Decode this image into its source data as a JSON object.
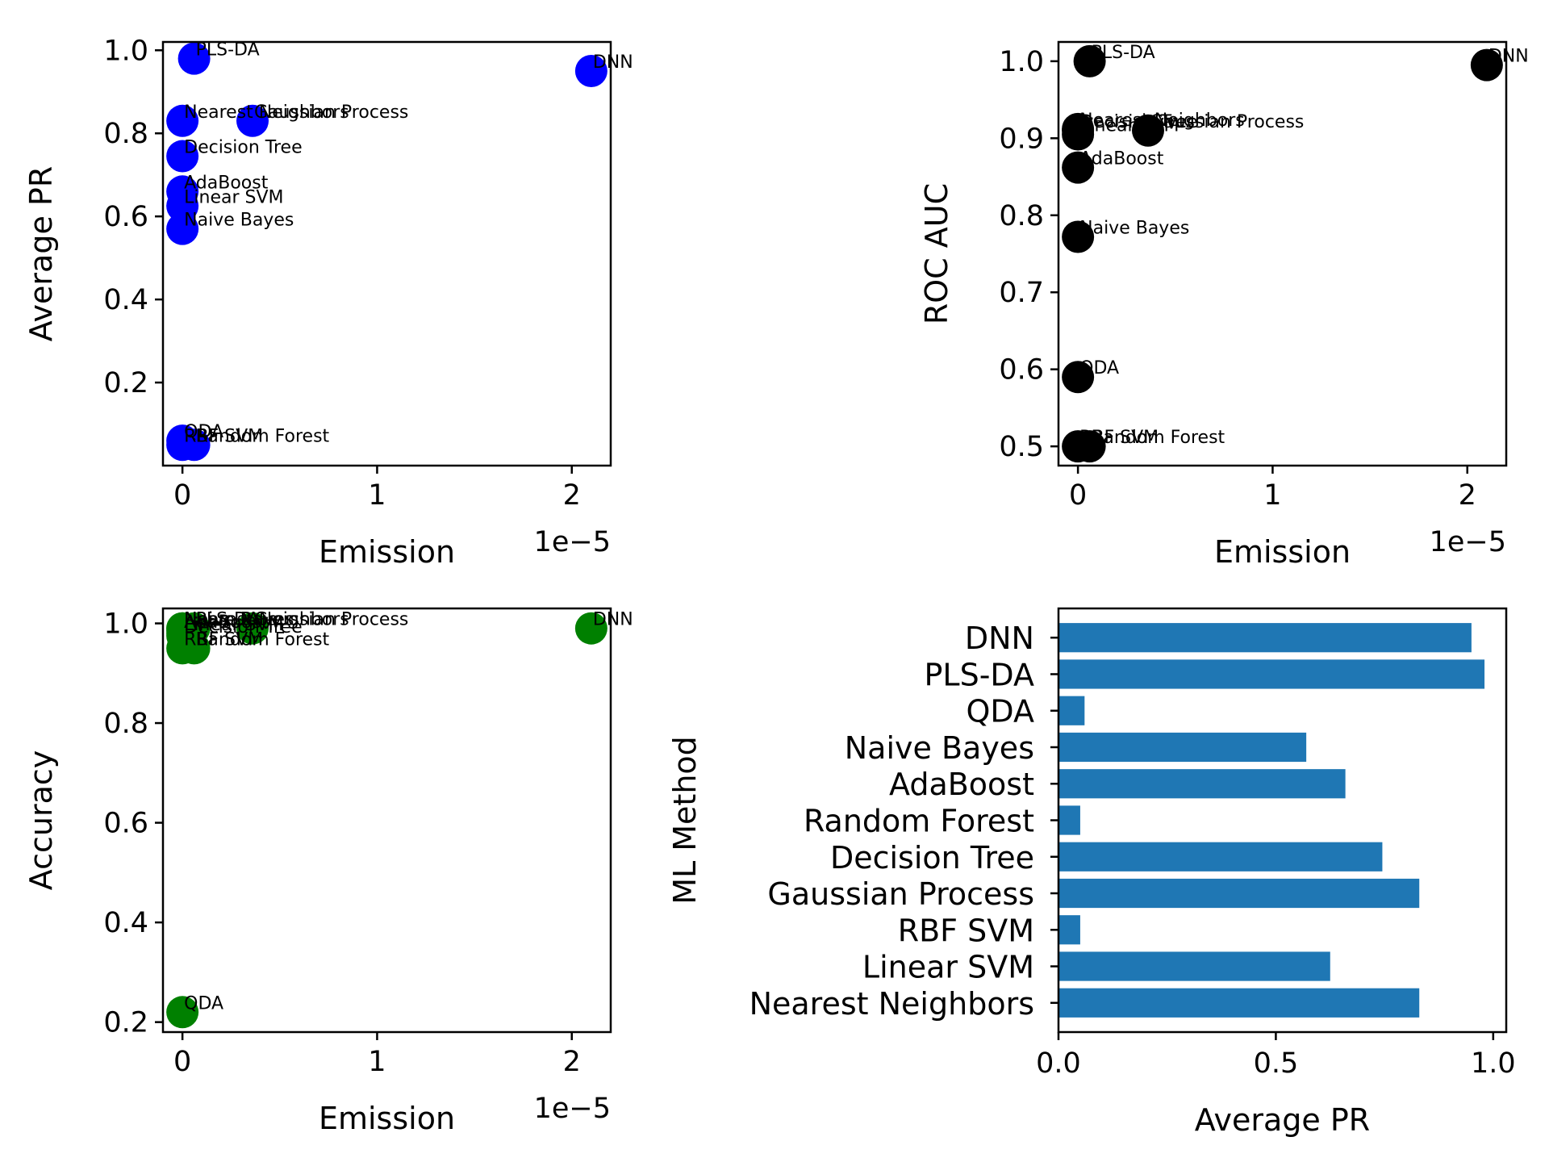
{
  "chart_data": [
    {
      "type": "scatter",
      "xlabel": "Emission",
      "ylabel": "Average PR",
      "x_offset_label": "1e−5",
      "color": "#0000ff",
      "xlim": [
        -1e-06,
        2.2e-05
      ],
      "ylim": [
        0.0,
        1.02
      ],
      "xticks": [
        0,
        1e-05,
        2e-05
      ],
      "xtick_labels": [
        "0",
        "1",
        "2"
      ],
      "yticks": [
        0.2,
        0.4,
        0.6,
        0.8,
        1.0
      ],
      "ytick_labels": [
        "0.2",
        "0.4",
        "0.6",
        "0.8",
        "1.0"
      ],
      "points": [
        {
          "label": "Nearest Neighbors",
          "x": 0.0,
          "y": 0.83
        },
        {
          "label": "Linear SVM",
          "x": 0.0,
          "y": 0.625
        },
        {
          "label": "RBF SVM",
          "x": 0.0,
          "y": 0.05
        },
        {
          "label": "Gaussian Process",
          "x": 3.6e-06,
          "y": 0.83
        },
        {
          "label": "Decision Tree",
          "x": 0.0,
          "y": 0.745
        },
        {
          "label": "Random Forest",
          "x": 6e-07,
          "y": 0.05
        },
        {
          "label": "AdaBoost",
          "x": 0.0,
          "y": 0.66
        },
        {
          "label": "Naive Bayes",
          "x": 0.0,
          "y": 0.57
        },
        {
          "label": "QDA",
          "x": 0.0,
          "y": 0.06
        },
        {
          "label": "PLS-DA",
          "x": 6e-07,
          "y": 0.98
        },
        {
          "label": "DNN",
          "x": 2.1e-05,
          "y": 0.95
        }
      ]
    },
    {
      "type": "scatter",
      "xlabel": "Emission",
      "ylabel": "ROC AUC",
      "x_offset_label": "1e−5",
      "color": "#000000",
      "xlim": [
        -1e-06,
        2.2e-05
      ],
      "ylim": [
        0.475,
        1.025
      ],
      "xticks": [
        0,
        1e-05,
        2e-05
      ],
      "xtick_labels": [
        "0",
        "1",
        "2"
      ],
      "yticks": [
        0.5,
        0.6,
        0.7,
        0.8,
        0.9,
        1.0
      ],
      "ytick_labels": [
        "0.5",
        "0.6",
        "0.7",
        "0.8",
        "0.9",
        "1.0"
      ],
      "points": [
        {
          "label": "Nearest Neighbors",
          "x": 0.0,
          "y": 0.912
        },
        {
          "label": "Linear SVM",
          "x": 0.0,
          "y": 0.905
        },
        {
          "label": "RBF SVM",
          "x": 0.0,
          "y": 0.5
        },
        {
          "label": "Gaussian Process",
          "x": 3.6e-06,
          "y": 0.91
        },
        {
          "label": "Decision Tree",
          "x": 0.0,
          "y": 0.91
        },
        {
          "label": "Random Forest",
          "x": 6e-07,
          "y": 0.5
        },
        {
          "label": "AdaBoost",
          "x": 0.0,
          "y": 0.862
        },
        {
          "label": "Naive Bayes",
          "x": 0.0,
          "y": 0.772
        },
        {
          "label": "QDA",
          "x": 0.0,
          "y": 0.59
        },
        {
          "label": "PLS-DA",
          "x": 6e-07,
          "y": 1.0
        },
        {
          "label": "DNN",
          "x": 2.1e-05,
          "y": 0.995
        }
      ]
    },
    {
      "type": "scatter",
      "xlabel": "Emission",
      "ylabel": "Accuracy",
      "x_offset_label": "1e−5",
      "color": "#008000",
      "xlim": [
        -1e-06,
        2.2e-05
      ],
      "ylim": [
        0.18,
        1.03
      ],
      "xticks": [
        0,
        1e-05,
        2e-05
      ],
      "xtick_labels": [
        "0",
        "1",
        "2"
      ],
      "yticks": [
        0.2,
        0.4,
        0.6,
        0.8,
        1.0
      ],
      "ytick_labels": [
        "0.2",
        "0.4",
        "0.6",
        "0.8",
        "1.0"
      ],
      "points": [
        {
          "label": "Nearest Neighbors",
          "x": 0.0,
          "y": 0.99
        },
        {
          "label": "Linear SVM",
          "x": 0.0,
          "y": 0.98
        },
        {
          "label": "RBF SVM",
          "x": 0.0,
          "y": 0.95
        },
        {
          "label": "Gaussian Process",
          "x": 3.6e-06,
          "y": 0.99
        },
        {
          "label": "Decision Tree",
          "x": 0.0,
          "y": 0.975
        },
        {
          "label": "Random Forest",
          "x": 6e-07,
          "y": 0.95
        },
        {
          "label": "AdaBoost",
          "x": 0.0,
          "y": 0.985
        },
        {
          "label": "Naive Bayes",
          "x": 0.0,
          "y": 0.99
        },
        {
          "label": "QDA",
          "x": 0.0,
          "y": 0.22
        },
        {
          "label": "PLS-DA",
          "x": 6e-07,
          "y": 0.99
        },
        {
          "label": "DNN",
          "x": 2.1e-05,
          "y": 0.99
        }
      ]
    },
    {
      "type": "bar",
      "orientation": "horizontal",
      "xlabel": "Average PR",
      "ylabel": "ML Method",
      "color": "#1f77b4",
      "xlim": [
        0.0,
        1.03
      ],
      "xticks": [
        0.0,
        0.5,
        1.0
      ],
      "xtick_labels": [
        "0.0",
        "0.5",
        "1.0"
      ],
      "categories": [
        "Nearest Neighbors",
        "Linear SVM",
        "RBF SVM",
        "Gaussian Process",
        "Decision Tree",
        "Random Forest",
        "AdaBoost",
        "Naive Bayes",
        "QDA",
        "PLS-DA",
        "DNN"
      ],
      "values": [
        0.83,
        0.625,
        0.05,
        0.83,
        0.745,
        0.05,
        0.66,
        0.57,
        0.06,
        0.98,
        0.95
      ]
    }
  ]
}
